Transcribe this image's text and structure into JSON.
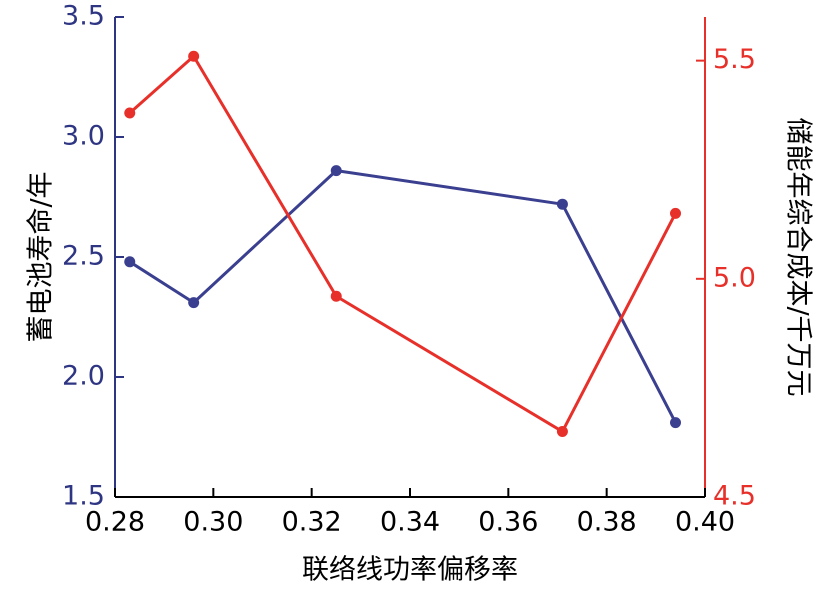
{
  "chart_data": {
    "type": "line",
    "x": [
      0.283,
      0.296,
      0.325,
      0.371,
      0.394
    ],
    "xlabel": "联络线功率偏移率",
    "xlim": [
      0.28,
      0.4
    ],
    "xticks": [
      "0.28",
      "0.30",
      "0.32",
      "0.34",
      "0.36",
      "0.38",
      "0.40"
    ],
    "y_left": {
      "label": "蓄电池寿命/年",
      "lim": [
        1.5,
        3.5
      ],
      "ticks": [
        "1.5",
        "2.0",
        "2.5",
        "3.0",
        "3.5"
      ],
      "color": "#2e3582"
    },
    "y_right": {
      "label": "储能年综合成本/千万元",
      "lim": [
        4.5,
        5.6
      ],
      "ticks": [
        "4.5",
        "5.0",
        "5.5"
      ],
      "color": "#e8302a"
    },
    "series": [
      {
        "axis": "left",
        "color": "#3a3f8f",
        "values": [
          2.48,
          2.31,
          2.86,
          2.72,
          1.81
        ]
      },
      {
        "axis": "right",
        "color": "#e8302a",
        "values": [
          5.38,
          5.51,
          4.96,
          4.65,
          5.15
        ]
      }
    ]
  }
}
